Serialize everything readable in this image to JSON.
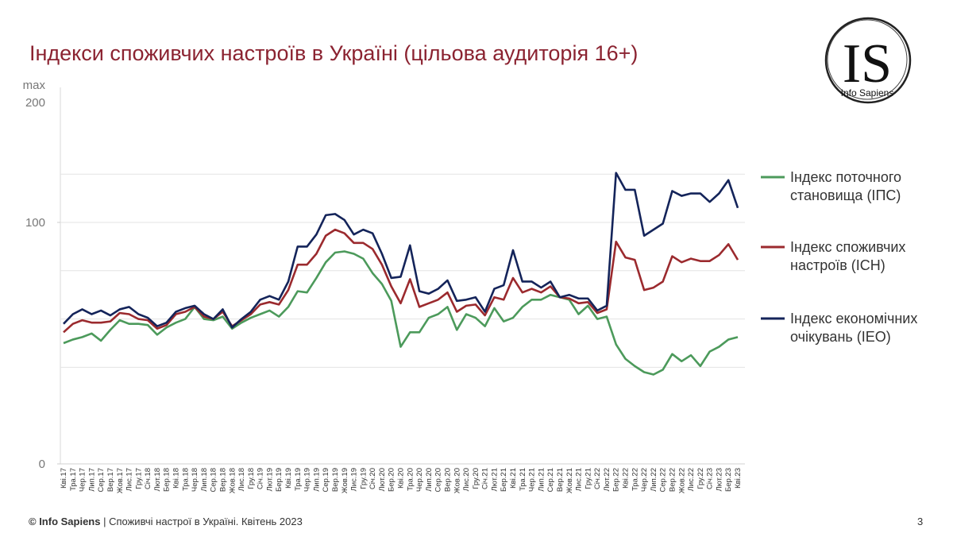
{
  "chart_data": {
    "type": "line",
    "title": "Індекси споживчих настроїв в Україні (цільова аудиторія 16+)",
    "categories": [
      "Кві.17",
      "Тра.17",
      "Чер.17",
      "Лип.17",
      "Сер.17",
      "Вер.17",
      "Жов.17",
      "Лис.17",
      "Гру.17",
      "Січ.18",
      "Лют.18",
      "Бер.18",
      "Кві.18",
      "Тра.18",
      "Чер.18",
      "Лип.18",
      "Сер.18",
      "Вер.18",
      "Жов.18",
      "Лис.18",
      "Гру.18",
      "Січ.19",
      "Лют.19",
      "Бер.19",
      "Кві.19",
      "Тра.19",
      "Чер.19",
      "Лип.19",
      "Сер.19",
      "Вер.19",
      "Жов.19",
      "Лис.19",
      "Гру.19",
      "Січ.20",
      "Лют.20",
      "Бер.20",
      "Кві.20",
      "Тра.20",
      "Чер.20",
      "Лип.20",
      "Сер.20",
      "Вер.20",
      "Жов.20",
      "Лис.20",
      "Гру.20",
      "Січ.21",
      "Лют.21",
      "Бер.21",
      "Кві.21",
      "Тра.21",
      "Чер.21",
      "Лип.21",
      "Сер.21",
      "Вер.21",
      "Жов.21",
      "Лис.21",
      "Гру.21",
      "Січ.22",
      "Лют.22",
      "Бер.22",
      "Кві.22",
      "Тра.22",
      "Чер.22",
      "Лип.22",
      "Сер.22",
      "Вер.22",
      "Жов.22",
      "Лис.22",
      "Гру.22",
      "Січ.23",
      "Лют.23",
      "Бер.23",
      "Кві.23"
    ],
    "series": [
      {
        "name": "Індекс поточного становища (ІПС)",
        "color": "#4c9a5b",
        "values": [
          50,
          51.5,
          52.5,
          54,
          51,
          55.5,
          59.5,
          58,
          58,
          57.5,
          53.5,
          56.5,
          58.5,
          60,
          65,
          60,
          59.5,
          61,
          56,
          58.5,
          60.5,
          62,
          63.5,
          61,
          65,
          71.5,
          71,
          77,
          83.5,
          87.5,
          88,
          87,
          85,
          79,
          74.5,
          67.5,
          48.5,
          54.5,
          54.5,
          60.5,
          62,
          65,
          55.5,
          62,
          60.5,
          57,
          64.5,
          59,
          60.5,
          65,
          68,
          68,
          70,
          69,
          68,
          62,
          65.5,
          60,
          61,
          49.5,
          43.5,
          40.5,
          38,
          37,
          39,
          45.5,
          42.5,
          45,
          40.5,
          46.5,
          48.5,
          51.5,
          52.5
        ]
      },
      {
        "name": "Індекс споживчих настроїв (ІСН)",
        "color": "#9b2a2e",
        "values": [
          54.5,
          58,
          59.5,
          58.5,
          58.5,
          59,
          62.5,
          62,
          60,
          59.5,
          56,
          57.5,
          62,
          63,
          65,
          61,
          60,
          63,
          57,
          59.5,
          62,
          66,
          67,
          66,
          72,
          82.5,
          82.5,
          87,
          94.5,
          97,
          95.5,
          91.5,
          91.5,
          89,
          82.5,
          73.5,
          66.5,
          76.5,
          65,
          66.5,
          68,
          71,
          63,
          65.5,
          66,
          61.5,
          69,
          68,
          77,
          71,
          72.5,
          71,
          73.5,
          69,
          68.5,
          66.5,
          67,
          62.5,
          64,
          92,
          85.5,
          84.5,
          72,
          73,
          75.5,
          86,
          83.5,
          85,
          84,
          84,
          86.5,
          91,
          84.5
        ]
      },
      {
        "name": "Індекс економічних очікувань (ІЕО)",
        "color": "#14245a",
        "values": [
          58,
          62,
          64,
          62,
          63.5,
          61.5,
          64,
          65,
          62,
          60.5,
          57,
          58.5,
          63,
          64.5,
          65.5,
          62,
          60,
          64,
          56.5,
          60,
          63,
          68,
          69.5,
          68,
          75.5,
          90,
          90,
          95,
          103,
          103.5,
          101,
          95,
          97,
          95.5,
          87,
          77,
          77.5,
          90.5,
          71.5,
          70.5,
          72.5,
          76,
          67.5,
          68,
          69,
          63,
          72.5,
          74,
          88.5,
          75.5,
          75.5,
          73,
          75.5,
          69,
          70,
          68.5,
          68.5,
          63.5,
          65.5,
          120.5,
          113.5,
          113.5,
          94.5,
          97,
          99.5,
          113,
          111,
          112,
          112,
          108.5,
          112,
          117.5,
          106
        ]
      }
    ],
    "ylim": [
      0,
      150
    ],
    "yticks": [
      0,
      100
    ],
    "y_top_labels": [
      "max",
      "200"
    ],
    "grid_lines": [
      40,
      60,
      80,
      100,
      120
    ],
    "grid_color": "#e3e3e3",
    "legend": "right"
  },
  "logo": {
    "mark": "IS",
    "name": "Info Sapiens"
  },
  "footer": {
    "source": "© Info Sapiens",
    "text": "| Споживчі настрої в Україні. Квітень 2023",
    "page": 3
  }
}
